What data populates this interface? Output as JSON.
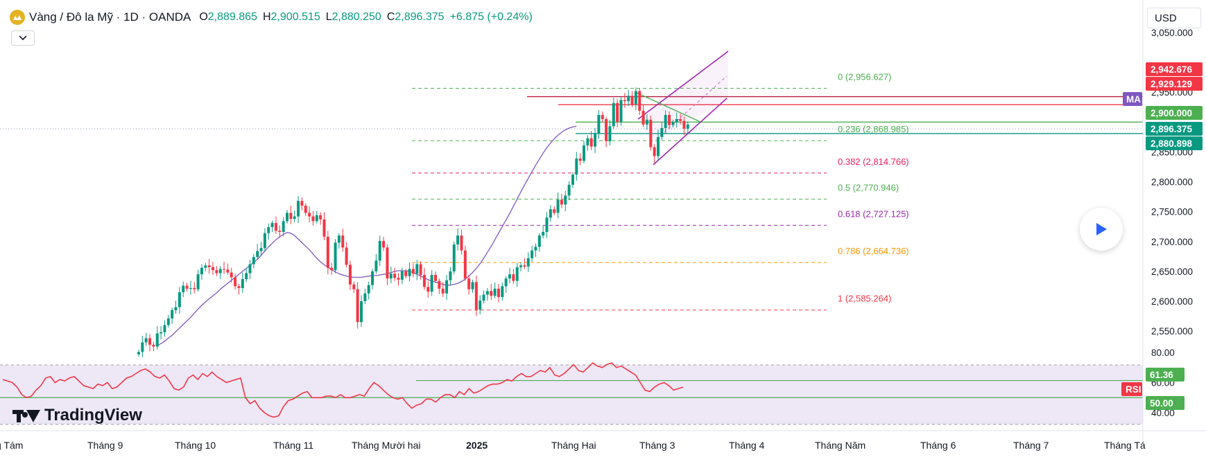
{
  "header": {
    "title": "Vàng / Đô la Mỹ · 1D · OANDA",
    "open_key": "O",
    "open": "2,889.865",
    "high_key": "H",
    "high": "2,900.515",
    "low_key": "L",
    "low": "2,880.250",
    "close_key": "C",
    "close": "2,896.375",
    "change": "+6.875 (+0.24%)"
  },
  "currency_button": "USD",
  "watermark": "TradingView",
  "icons": {
    "logo": "gold-coin-icon",
    "toggle": "chevron-down-icon",
    "play": "play-icon"
  },
  "colors": {
    "up": "#089981",
    "down": "#f23645",
    "ma_line": "#7e57c2",
    "rsi_line": "#f23645",
    "rsi_band": "#ede7f6",
    "support_line": "#4caf50",
    "resistance_line": "#b71c3c",
    "channel": "#9c27b0"
  },
  "chart_data": [
    {
      "type": "candlestick",
      "symbol": "XAUUSD",
      "title": "Vàng / Đô la Mỹ · 1D · OANDA",
      "x_ticks": [
        "g Tám",
        "Tháng 9",
        "Tháng 10",
        "Tháng 11",
        "Tháng Mười hai",
        "2025",
        "Tháng Hai",
        "Tháng 3",
        "Tháng 4",
        "Tháng Năm",
        "Tháng 6",
        "Tháng 7",
        "Tháng Tá"
      ],
      "y_ticks": [
        "3,050.000",
        "2,950.000",
        "2,850.000",
        "2,800.000",
        "2,750.000",
        "2,700.000",
        "2,650.000",
        "2,600.000",
        "2,550.000"
      ],
      "ylim": [
        2535,
        3050
      ],
      "grid": false,
      "closes": [
        2515,
        2531,
        2538,
        2527,
        2524,
        2546,
        2548,
        2560,
        2571,
        2585,
        2590,
        2615,
        2626,
        2621,
        2622,
        2620,
        2645,
        2656,
        2660,
        2657,
        2652,
        2647,
        2654,
        2653,
        2648,
        2640,
        2625,
        2622,
        2637,
        2647,
        2662,
        2674,
        2684,
        2689,
        2714,
        2724,
        2731,
        2718,
        2716,
        2734,
        2748,
        2738,
        2742,
        2768,
        2760,
        2748,
        2742,
        2734,
        2744,
        2737,
        2708,
        2656,
        2652,
        2698,
        2710,
        2690,
        2661,
        2628,
        2620,
        2565,
        2600,
        2613,
        2627,
        2650,
        2668,
        2701,
        2690,
        2638,
        2646,
        2639,
        2636,
        2650,
        2642,
        2654,
        2646,
        2662,
        2644,
        2624,
        2616,
        2644,
        2634,
        2621,
        2613,
        2635,
        2650,
        2695,
        2710,
        2685,
        2638,
        2620,
        2632,
        2586,
        2601,
        2611,
        2617,
        2609,
        2621,
        2607,
        2625,
        2638,
        2645,
        2634,
        2657,
        2660,
        2658,
        2672,
        2685,
        2691,
        2710,
        2716,
        2740,
        2754,
        2748,
        2770,
        2762,
        2777,
        2795,
        2812,
        2839,
        2835,
        2861,
        2873,
        2859,
        2880,
        2912,
        2905,
        2868,
        2893,
        2932,
        2900,
        2937,
        2935,
        2944,
        2930,
        2952,
        2919,
        2896,
        2904,
        2858,
        2843,
        2875,
        2890,
        2912,
        2895,
        2900,
        2905,
        2902,
        2889,
        2896
      ],
      "series": [
        {
          "name": "MA",
          "type": "line",
          "start_index": 5,
          "values": [
            2526,
            2529,
            2533,
            2538,
            2543,
            2549,
            2555,
            2561,
            2567,
            2573,
            2580,
            2587,
            2593,
            2599,
            2604,
            2609,
            2614,
            2620,
            2625,
            2630,
            2635,
            2640,
            2645,
            2650,
            2655,
            2660,
            2665,
            2670,
            2677,
            2684,
            2691,
            2697,
            2703,
            2708,
            2712,
            2715,
            2714,
            2710,
            2704,
            2698,
            2692,
            2686,
            2679,
            2672,
            2666,
            2661,
            2657,
            2653,
            2649,
            2646,
            2644,
            2642,
            2641,
            2640,
            2640,
            2640,
            2641,
            2642,
            2643,
            2643,
            2644,
            2645,
            2646,
            2648,
            2650,
            2651,
            2651,
            2651,
            2650,
            2648,
            2645,
            2642,
            2639,
            2636,
            2634,
            2632,
            2630,
            2628,
            2627,
            2627,
            2628,
            2630,
            2633,
            2637,
            2642,
            2648,
            2655,
            2663,
            2672,
            2682,
            2692,
            2703,
            2714,
            2725,
            2736,
            2747,
            2759,
            2771,
            2783,
            2795,
            2806,
            2817,
            2828,
            2838,
            2848,
            2857,
            2865,
            2872,
            2878,
            2883,
            2887,
            2890,
            2892,
            2893
          ]
        }
      ],
      "price_labels": [
        {
          "text": "2,942.676",
          "color": "#f23645"
        },
        {
          "text": "2,929.129",
          "color": "#f23645"
        },
        {
          "text": "MA",
          "color": "#7e57c2"
        },
        {
          "text": "2,900.000",
          "color": "#4caf50"
        },
        {
          "text": "2,896.375",
          "color": "#089981"
        },
        {
          "text": "2,880.898",
          "color": "#089981"
        }
      ],
      "horizontal_lines": [
        {
          "price": 2942.676,
          "color": "#b71c3c"
        },
        {
          "price": 2929.129,
          "color": "#f23645"
        },
        {
          "price": 2900.0,
          "color": "#4caf50"
        },
        {
          "price": 2880.898,
          "color": "#089981"
        }
      ],
      "fibonacci": [
        {
          "text": "0 (2,956.627)",
          "price": 2956.627,
          "color": "#4caf50"
        },
        {
          "text": "0.236 (2,868.985)",
          "price": 2868.985,
          "color": "#4caf50"
        },
        {
          "text": "0.382 (2,814.766)",
          "price": 2814.766,
          "color": "#e91e63"
        },
        {
          "text": "0.5 (2,770.946)",
          "price": 2770.946,
          "color": "#4caf50"
        },
        {
          "text": "0.618 (2,727.125)",
          "price": 2727.125,
          "color": "#9c27b0"
        },
        {
          "text": "0.786 (2,664.736)",
          "price": 2664.736,
          "color": "#ff9800"
        },
        {
          "text": "1 (2,585.264)",
          "price": 2585.264,
          "color": "#f23645"
        }
      ]
    },
    {
      "type": "line",
      "title": "RSI",
      "y_ticks": [
        "80.00",
        "60.00",
        "40.00"
      ],
      "ylim": [
        35,
        85
      ],
      "series": [
        {
          "name": "RSI",
          "values": [
            62,
            61,
            60,
            57,
            52,
            50,
            51,
            55,
            58,
            63,
            64,
            60,
            62,
            61,
            63,
            64,
            61,
            58,
            57,
            56,
            59,
            58,
            60,
            56,
            57,
            60,
            63,
            64,
            66,
            68,
            69,
            67,
            64,
            63,
            65,
            61,
            56,
            55,
            57,
            63,
            65,
            62,
            66,
            64,
            67,
            64,
            62,
            60,
            61,
            62,
            63,
            50,
            46,
            48,
            43,
            40,
            38,
            37,
            38,
            44,
            48,
            49,
            51,
            53,
            54,
            50,
            50,
            50,
            51,
            51,
            50,
            52,
            50,
            50,
            51,
            52,
            51,
            56,
            60,
            58,
            55,
            52,
            50,
            49,
            50,
            46,
            43,
            45,
            46,
            49,
            49,
            47,
            50,
            52,
            52,
            50,
            54,
            52,
            56,
            53,
            54,
            56,
            58,
            59,
            59,
            60,
            62,
            61,
            64,
            66,
            64,
            64,
            66,
            68,
            67,
            70,
            65,
            64,
            66,
            69,
            72,
            68,
            67,
            70,
            73,
            71,
            70,
            72,
            73,
            70,
            71,
            69,
            67,
            65,
            60,
            55,
            54,
            57,
            59,
            60,
            58,
            55,
            56,
            57
          ]
        }
      ],
      "horizontal_lines": [
        {
          "value": 61.36,
          "color": "#4caf50"
        },
        {
          "value": 50.0,
          "color": "#4caf50"
        }
      ],
      "price_labels": [
        {
          "text": "61.36",
          "color": "#4caf50"
        },
        {
          "text": "RSI",
          "color": "#f23645"
        },
        {
          "text": "50.00",
          "color": "#4caf50"
        }
      ]
    }
  ]
}
